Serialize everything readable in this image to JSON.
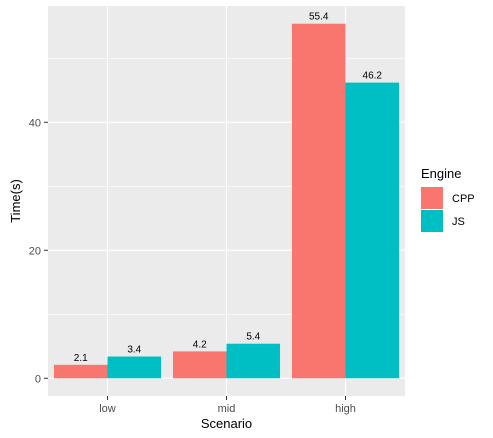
{
  "chart_data": {
    "type": "bar",
    "categories": [
      "low",
      "mid",
      "high"
    ],
    "series": [
      {
        "name": "CPP",
        "values": [
          2.1,
          4.2,
          55.4
        ],
        "labels": [
          "2.1",
          "4.2",
          "55.4"
        ],
        "color": "#F8766D"
      },
      {
        "name": "JS",
        "values": [
          3.4,
          5.4,
          46.2
        ],
        "labels": [
          "3.4",
          "5.4",
          "46.2"
        ],
        "color": "#00BFC4"
      }
    ],
    "xlabel": "Scenario",
    "ylabel": "Time(s)",
    "ylim": [
      -2.77,
      58.17
    ],
    "yticks": [
      0,
      20,
      40
    ],
    "ytick_labels": [
      "0",
      "20",
      "40"
    ],
    "minor_yticks": [
      10,
      30,
      50
    ],
    "grid": true,
    "panel_background": "#EBEBEB",
    "legend": {
      "title": "Engine",
      "position": "right"
    }
  }
}
